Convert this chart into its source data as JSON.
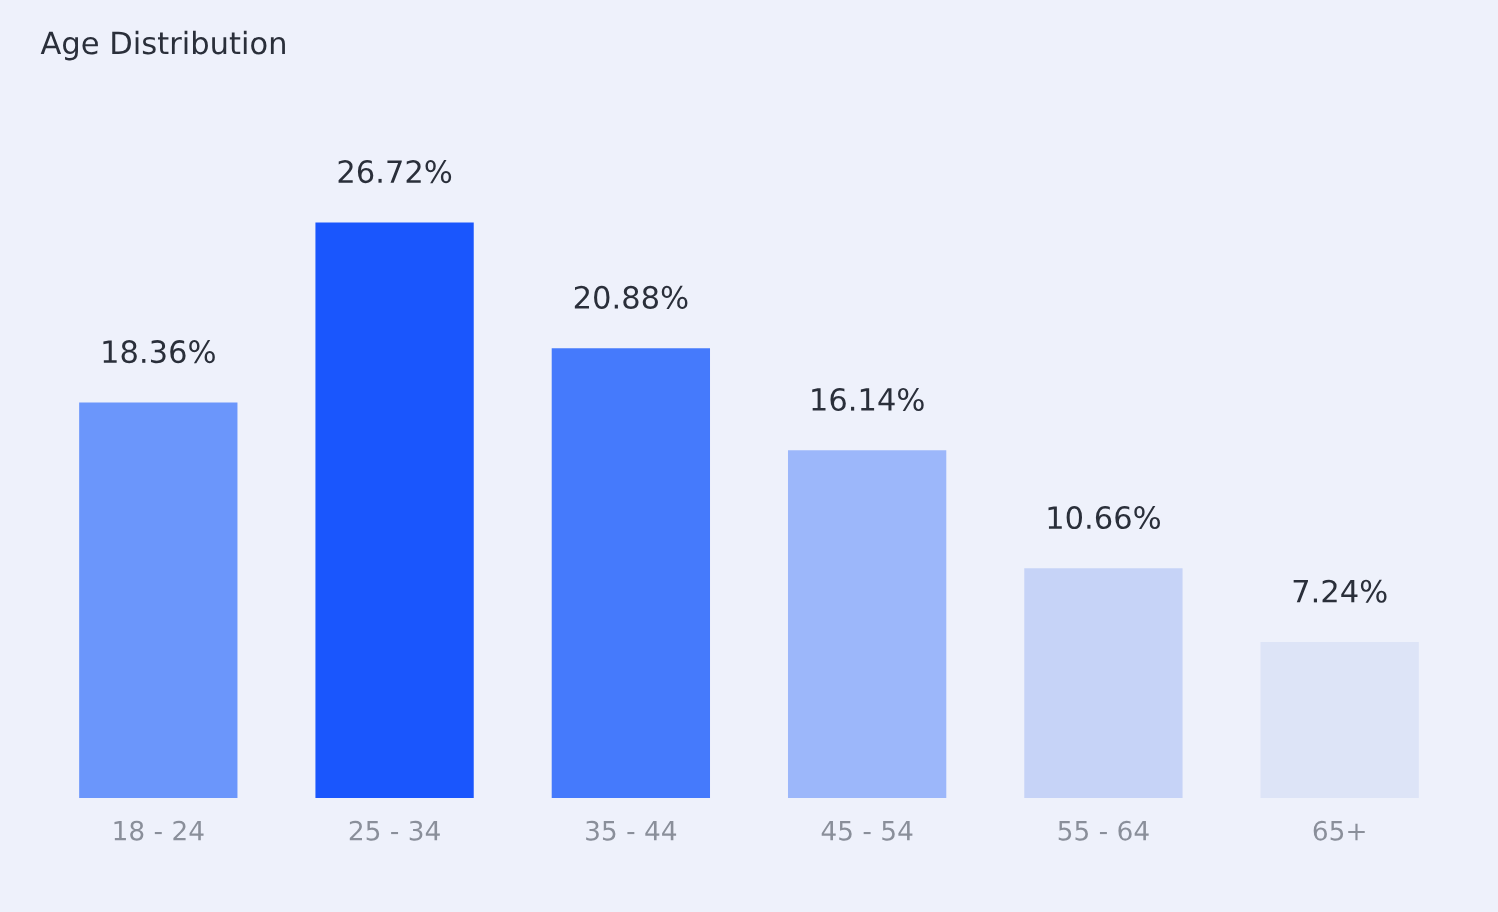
{
  "chart_data": {
    "type": "bar",
    "title": "Age Distribution",
    "categories": [
      "18 - 24",
      "25 - 34",
      "35 - 44",
      "45 - 54",
      "55 - 64",
      "65+"
    ],
    "values": [
      18.36,
      26.72,
      20.88,
      16.14,
      10.66,
      7.24
    ],
    "value_labels": [
      "18.36%",
      "26.72%",
      "20.88%",
      "16.14%",
      "10.66%",
      "7.24%"
    ],
    "colors": [
      "#6b96fb",
      "#1a56fd",
      "#457afc",
      "#9cb7fa",
      "#c6d3f7",
      "#dde4f7"
    ],
    "grid": false,
    "legend": false
  }
}
